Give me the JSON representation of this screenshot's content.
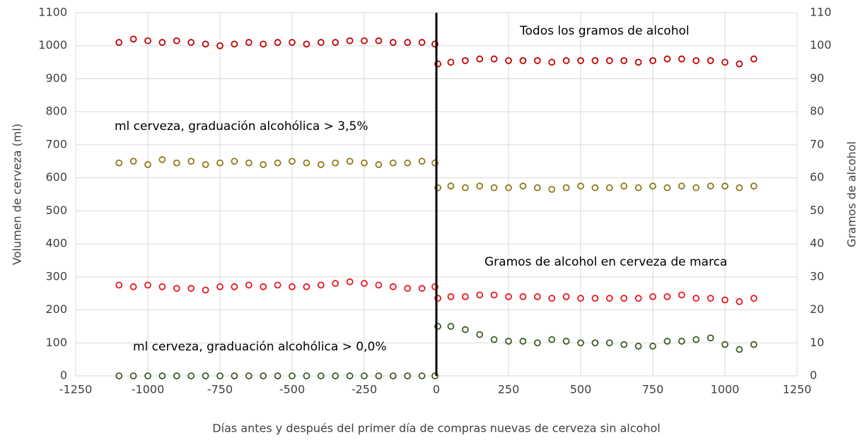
{
  "chart_data": {
    "type": "scatter",
    "xlabel": "Días antes y después del primer día de compras nuevas de cerveza sin alcohol",
    "ylabel": "Volumen de cerveza (ml)",
    "y2label": "Gramos de alcohol",
    "xlim": [
      -1250,
      1250
    ],
    "xticks": [
      -1250,
      -1000,
      -750,
      -500,
      -250,
      0,
      250,
      500,
      750,
      1000,
      1250
    ],
    "ylim": [
      0,
      1100
    ],
    "yticks": [
      0,
      100,
      200,
      300,
      400,
      500,
      600,
      700,
      800,
      900,
      1000,
      1100
    ],
    "y2lim": [
      0,
      110
    ],
    "y2ticks": [
      0,
      10,
      20,
      30,
      40,
      50,
      60,
      70,
      80,
      90,
      100,
      110
    ],
    "grid": true,
    "x": [
      -1100,
      -1050,
      -1000,
      -950,
      -900,
      -850,
      -800,
      -750,
      -700,
      -650,
      -600,
      -550,
      -500,
      -450,
      -400,
      -350,
      -300,
      -250,
      -200,
      -150,
      -100,
      -50,
      -5,
      5,
      50,
      100,
      150,
      200,
      250,
      300,
      350,
      400,
      450,
      500,
      550,
      600,
      650,
      700,
      750,
      800,
      850,
      900,
      950,
      1000,
      1050,
      1100
    ],
    "series": [
      {
        "name": "Todos los gramos de alcohol",
        "color": "#c00000",
        "axis": "y2",
        "values": [
          101,
          102,
          101.5,
          101,
          101.5,
          101,
          100.5,
          100,
          100.5,
          101,
          100.5,
          101,
          101,
          100.5,
          101,
          101,
          101.5,
          101.5,
          101.5,
          101,
          101,
          101,
          100.5,
          94.5,
          95,
          95.5,
          96,
          96,
          95.5,
          95.5,
          95.5,
          95,
          95.5,
          95.5,
          95.5,
          95.5,
          95.5,
          95,
          95.5,
          96,
          96,
          95.5,
          95.5,
          95,
          94.5,
          96
        ]
      },
      {
        "name": "ml cerveza, graduación alcohólica > 3,5%",
        "color": "#8c7a1a",
        "values": [
          645,
          650,
          640,
          655,
          645,
          650,
          640,
          645,
          650,
          645,
          640,
          645,
          650,
          645,
          640,
          645,
          650,
          645,
          640,
          645,
          645,
          650,
          645,
          570,
          575,
          570,
          575,
          570,
          570,
          575,
          570,
          565,
          570,
          575,
          570,
          570,
          575,
          570,
          575,
          570,
          575,
          570,
          575,
          575,
          570,
          575
        ]
      },
      {
        "name": "Gramos de alcohol en cerveza de marca",
        "color": "#e8171f",
        "axis": "y2",
        "values": [
          27.5,
          27,
          27.5,
          27,
          26.5,
          26.5,
          26,
          27,
          27,
          27.5,
          27,
          27.5,
          27,
          27,
          27.5,
          28,
          28.5,
          28,
          27.5,
          27,
          26.5,
          26.5,
          27,
          23.5,
          24,
          24,
          24.5,
          24.5,
          24,
          24,
          24,
          23.5,
          24,
          23.5,
          23.5,
          23.5,
          23.5,
          23.5,
          24,
          24,
          24.5,
          23.5,
          23.5,
          23,
          22.5,
          23.5
        ]
      },
      {
        "name": "ml cerveza, graduación alcohólica > 0,0%",
        "color": "#3d5c27",
        "values": [
          0,
          0,
          0,
          0,
          0,
          0,
          0,
          0,
          0,
          0,
          0,
          0,
          0,
          0,
          0,
          0,
          0,
          0,
          0,
          0,
          0,
          0,
          0,
          150,
          150,
          140,
          125,
          110,
          105,
          105,
          100,
          110,
          105,
          100,
          100,
          100,
          95,
          90,
          90,
          105,
          105,
          110,
          115,
          95,
          80,
          95
        ]
      }
    ]
  }
}
